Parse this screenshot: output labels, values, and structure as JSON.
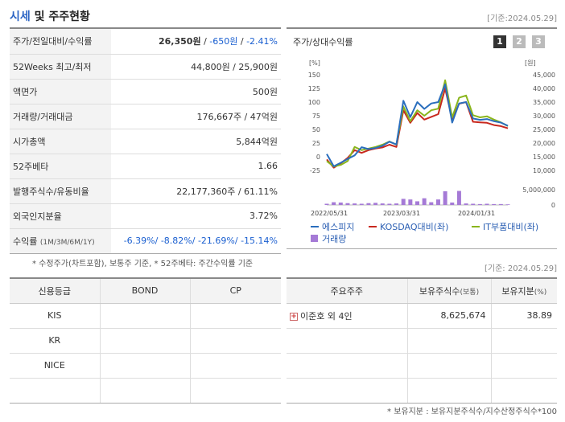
{
  "header": {
    "title_part1": "시세",
    "title_part2": "및 주주현황",
    "base_date": "[기준:2024.05.29]"
  },
  "quote": {
    "rows": [
      {
        "label": "주가/전일대비/수익률",
        "price": "26,350원",
        "change": "-650원",
        "rate": "-2.41%"
      },
      {
        "label": "52Weeks 최고/최저",
        "value": "44,800원 / 25,900원"
      },
      {
        "label": "액면가",
        "value": "500원"
      },
      {
        "label": "거래량/거래대금",
        "value": "176,667주 / 47억원"
      },
      {
        "label": "시가총액",
        "value": "5,844억원"
      },
      {
        "label": "52주베타",
        "value": "1.66"
      },
      {
        "label": "발행주식수/유동비율",
        "value": "22,177,360주 / 61.11%"
      },
      {
        "label": "외국인지분율",
        "value": "3.72%"
      }
    ],
    "returns_label": "수익률",
    "returns_sub": "(1M/3M/6M/1Y)",
    "returns": [
      "-6.39%",
      "-8.82%",
      "-21.69%",
      "-15.14%"
    ]
  },
  "notes": {
    "left": "* 수정주가(차트포함), 보통주 기준, * 52주베타: 주간수익률 기준",
    "right": "[기준: 2024.05.29]",
    "bottom": "* 보유지분 : 보유지분주식수/지수산정주식수*100"
  },
  "chart": {
    "title": "주가/상대수익률",
    "pages": [
      "1",
      "2",
      "3"
    ],
    "left_unit": "[%]",
    "right_unit": "[원]",
    "left_ticks": [
      "150",
      "125",
      "100",
      "75",
      "50",
      "25",
      "0",
      "-25"
    ],
    "right_ticks": [
      "45,000",
      "40,000",
      "35,000",
      "30,000",
      "25,000",
      "20,000",
      "15,000",
      "10,000"
    ],
    "volume_tick_top": "5,000,000",
    "volume_tick_bottom": "0",
    "x_labels": [
      "2022/05/31",
      "2023/03/31",
      "2024/01/31"
    ],
    "legend": [
      {
        "name": "에스피지",
        "color": "#2a6ebd"
      },
      {
        "name": "KOSDAQ대비(좌)",
        "color": "#c8281e"
      },
      {
        "name": "IT부품대비(좌)",
        "color": "#8ab51c"
      },
      {
        "name": "거래량",
        "color": "#a57ad6"
      }
    ]
  },
  "chart_data": {
    "type": "line",
    "ylim": [
      -25,
      150
    ],
    "y2lim": [
      10000,
      45000
    ],
    "series": [
      {
        "name": "에스피지",
        "values": [
          16000,
          11500,
          12800,
          14200,
          15500,
          18500,
          17800,
          18200,
          19000,
          20500,
          19500,
          35500,
          29500,
          35000,
          32500,
          34500,
          35000,
          41500,
          27500,
          34500,
          35000,
          29000,
          28500,
          28800,
          28000,
          27500,
          26350
        ]
      },
      {
        "name": "KOSDAQ대비(좌)",
        "values": [
          -5,
          -20,
          -12,
          -2,
          12,
          7,
          12,
          15,
          17,
          22,
          18,
          85,
          62,
          80,
          68,
          73,
          78,
          125,
          68,
          97,
          100,
          64,
          63,
          62,
          58,
          56,
          52
        ]
      },
      {
        "name": "IT부품대비(좌)",
        "values": [
          -8,
          -18,
          -15,
          -8,
          18,
          12,
          15,
          18,
          22,
          28,
          22,
          92,
          65,
          85,
          75,
          85,
          88,
          140,
          72,
          108,
          112,
          76,
          72,
          74,
          68,
          63,
          56
        ]
      },
      {
        "name": "거래량",
        "values": [
          0.4,
          0.9,
          0.8,
          0.6,
          0.5,
          0.4,
          0.6,
          0.7,
          0.5,
          0.4,
          0.5,
          2.0,
          1.8,
          1.2,
          2.2,
          0.9,
          1.8,
          4.5,
          0.8,
          4.6,
          0.5,
          0.4,
          0.3,
          0.4,
          0.3,
          0.3,
          0.2
        ]
      }
    ]
  },
  "credit": {
    "headers": [
      "신용등급",
      "BOND",
      "CP"
    ],
    "rows": [
      "KIS",
      "KR",
      "NICE",
      ""
    ]
  },
  "holders": {
    "headers": [
      "주요주주",
      "보유주식수",
      "(보통)",
      "보유지분",
      "(%)"
    ],
    "row": {
      "name": "이준호 외 4인",
      "shares": "8,625,674",
      "pct": "38.89"
    }
  }
}
